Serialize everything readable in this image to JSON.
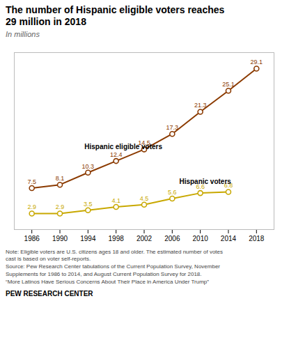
{
  "chart_data": {
    "type": "line",
    "title": "The number of Hispanic eligible voters reaches\n29 million in 2018",
    "subtitle": "In millions",
    "x": [
      1986,
      1990,
      1994,
      1998,
      2002,
      2006,
      2010,
      2014,
      2018
    ],
    "series": [
      {
        "name": "Hispanic eligible voters",
        "color": "#8B3A00",
        "marker": "circle",
        "values": [
          7.5,
          8.1,
          10.3,
          12.4,
          14.5,
          17.3,
          21.3,
          25.1,
          29.1
        ]
      },
      {
        "name": "Hispanic voters",
        "color": "#C8A800",
        "marker": "circle",
        "values": [
          2.9,
          2.9,
          3.5,
          4.1,
          4.5,
          5.6,
          6.6,
          6.8,
          null
        ]
      }
    ],
    "annotations": [
      {
        "text": "Hispanic eligible voters",
        "x": 1993.5,
        "y": 14.5
      },
      {
        "text": "Hispanic voters",
        "x": 2007.0,
        "y": 8.2
      }
    ],
    "xlim": [
      1983.5,
      2020.5
    ],
    "xticks": [
      1986,
      1990,
      1994,
      1998,
      2002,
      2006,
      2010,
      2014,
      2018
    ],
    "ylim": [
      0,
      32
    ],
    "tick_labels": "x",
    "grid": false,
    "data_labels": true,
    "notes": [
      "Note: Eligible voters are U.S. citizens ages 18 and older. The estimated number of votes",
      "cast is based on voter self-reports.",
      "Source: Pew Research Center tabulations of the Current Population Survey, November",
      "Supplements for 1986 to 2014, and August Current Population Survey for 2018.",
      "“More Latinos Have Serious Concerns About Their Place in America Under Trump”"
    ],
    "source": "PEW RESEARCH CENTER"
  }
}
